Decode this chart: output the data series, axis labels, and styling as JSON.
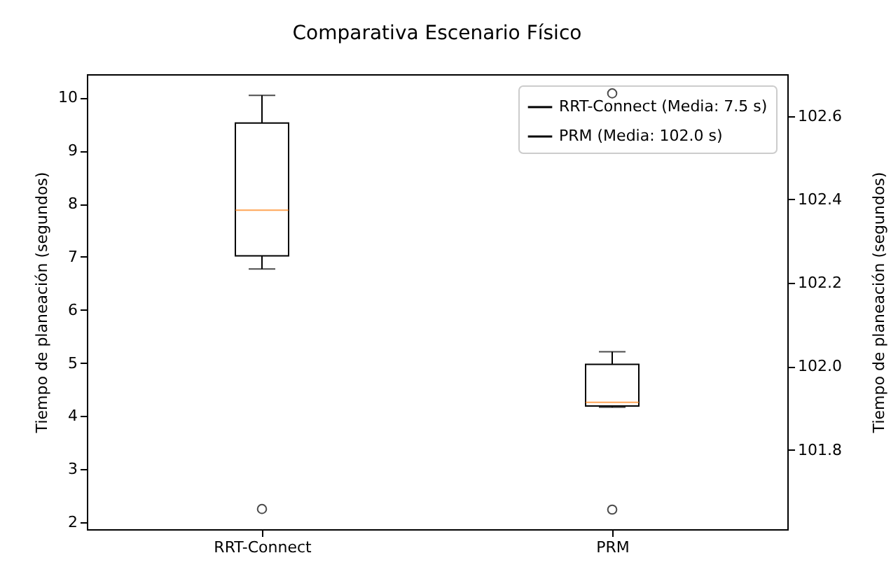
{
  "chart_data": {
    "type": "box",
    "title": "Comparativa Escenario Físico",
    "ylabel": "Tiempo de planeación (segundos)",
    "y2label": "Tiempo de planeación (segundos)",
    "categories": [
      "RRT-Connect",
      "PRM"
    ],
    "series": [
      {
        "name": "RRT-Connect (Media: 7.5 s)",
        "color": "#000000",
        "boxes": [
          {
            "low": 6.77,
            "q1": 7.02,
            "median": 7.88,
            "q3": 9.52,
            "high": 10.04,
            "outliers": [
              2.25
            ]
          },
          null
        ]
      },
      {
        "name": "PRM (Media: 102.0 s)",
        "color": "#000000",
        "axis": "y2",
        "boxes": [
          null,
          {
            "low": 101.902,
            "q1": 101.905,
            "median": 101.914,
            "q3": 102.005,
            "high": 102.035,
            "outliers": [
              102.654,
              101.657
            ]
          }
        ]
      }
    ],
    "ylim": [
      1.87,
      10.44
    ],
    "yticks": [
      2,
      3,
      4,
      5,
      6,
      7,
      8,
      9,
      10
    ],
    "y2lim": [
      101.61,
      102.7
    ],
    "y2ticks": [
      {
        "value": 101.8,
        "label": "101.8"
      },
      {
        "value": 102,
        "label": "102.0"
      },
      {
        "value": 102.2,
        "label": "102.2"
      },
      {
        "value": 102.4,
        "label": "102.4"
      },
      {
        "value": 102.6,
        "label": "102.6"
      }
    ],
    "legend": "top right",
    "grid": false
  }
}
